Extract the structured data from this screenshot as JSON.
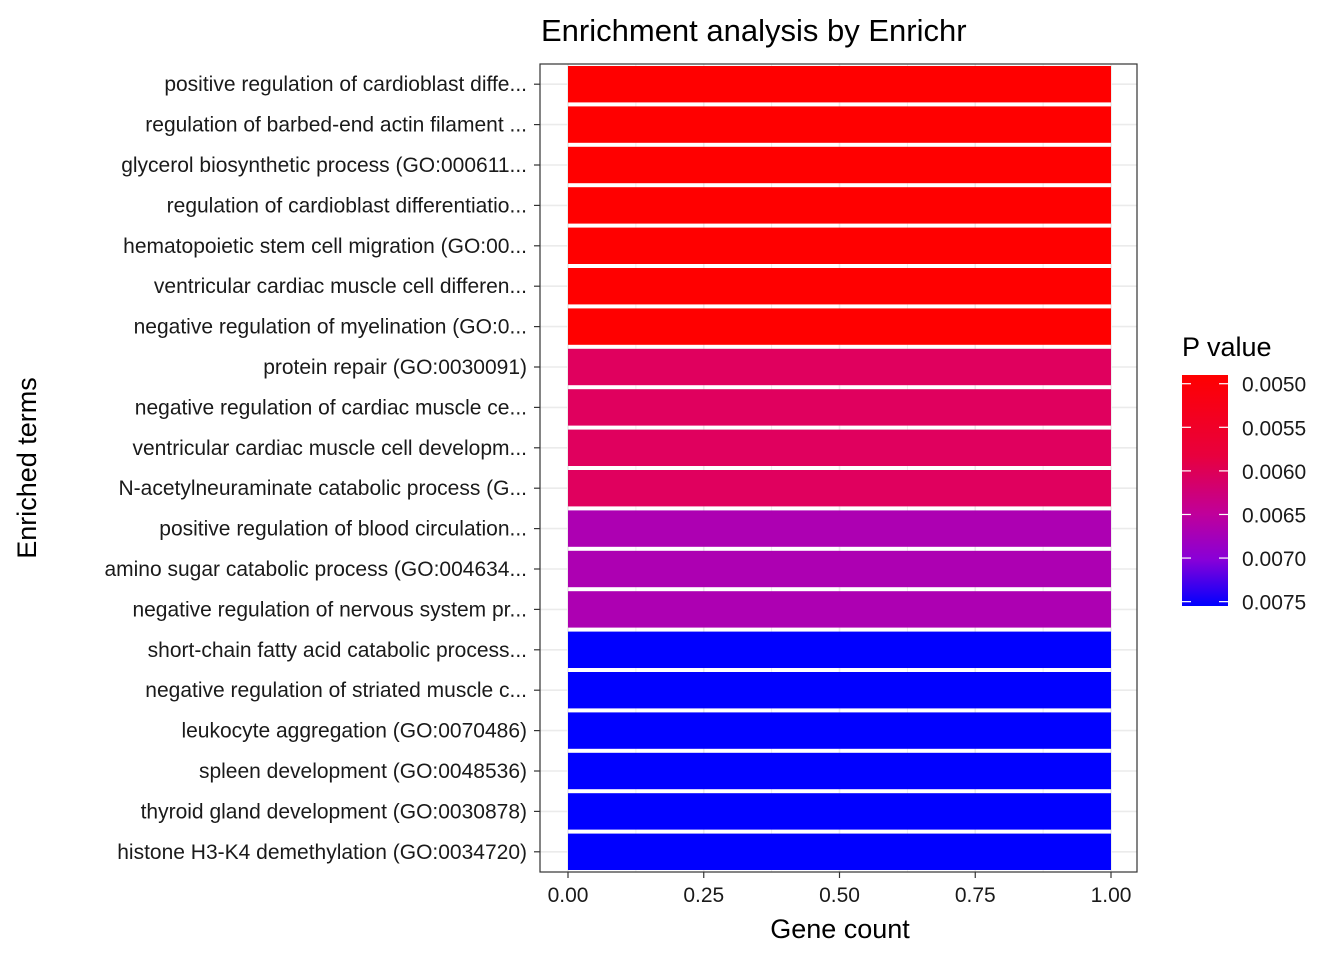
{
  "chart_data": {
    "type": "bar",
    "orientation": "horizontal",
    "title": "Enrichment analysis by Enrichr",
    "xlabel": "Gene count",
    "ylabel": "Enriched terms",
    "xlim": [
      0,
      1
    ],
    "xticks": [
      "0.00",
      "0.25",
      "0.50",
      "0.75",
      "1.00"
    ],
    "grid": true,
    "legend": {
      "title": "P value",
      "placement": "right",
      "type": "colorbar",
      "range": [
        0.0049,
        0.00755
      ],
      "ticks": [
        "0.0050",
        "0.0055",
        "0.0060",
        "0.0065",
        "0.0070",
        "0.0075"
      ],
      "tick_values": [
        0.005,
        0.0055,
        0.006,
        0.0065,
        0.007,
        0.0075
      ],
      "color_low": "#ff0000",
      "color_high": "#0000ff"
    },
    "categories": [
      "positive regulation of cardioblast diffe...",
      "regulation of barbed-end actin filament ...",
      "glycerol biosynthetic process (GO:000611...",
      "regulation of cardioblast differentiatio...",
      "hematopoietic stem cell migration (GO:00...",
      "ventricular cardiac muscle cell differen...",
      "negative regulation of myelination (GO:0...",
      "protein repair (GO:0030091)",
      "negative regulation of cardiac muscle ce...",
      "ventricular cardiac muscle cell developm...",
      "N-acetylneuraminate catabolic process (G...",
      "positive regulation of blood circulation...",
      "amino sugar catabolic process (GO:004634...",
      "negative regulation of nervous system pr...",
      "short-chain fatty acid catabolic process...",
      "negative regulation of striated muscle c...",
      "leukocyte aggregation (GO:0070486)",
      "spleen development (GO:0048536)",
      "thyroid gland development (GO:0030878)",
      "histone H3-K4 demethylation (GO:0034720)"
    ],
    "values": [
      1,
      1,
      1,
      1,
      1,
      1,
      1,
      1,
      1,
      1,
      1,
      1,
      1,
      1,
      1,
      1,
      1,
      1,
      1,
      1
    ],
    "pvalues": [
      0.0049,
      0.0049,
      0.0049,
      0.0049,
      0.0049,
      0.0049,
      0.0049,
      0.0056,
      0.0056,
      0.0056,
      0.0056,
      0.0065,
      0.0065,
      0.0065,
      0.00755,
      0.00755,
      0.00755,
      0.00755,
      0.00755,
      0.00755
    ],
    "bar_colors": [
      "#ff0000",
      "#ff0000",
      "#ff0000",
      "#ff0000",
      "#ff0000",
      "#ff0000",
      "#ff0000",
      "#e0005e",
      "#e0005e",
      "#e0005e",
      "#e0005e",
      "#ad00b2",
      "#ad00b2",
      "#ad00b2",
      "#0000ff",
      "#0000ff",
      "#0000ff",
      "#0000ff",
      "#0000ff",
      "#0000ff"
    ]
  }
}
